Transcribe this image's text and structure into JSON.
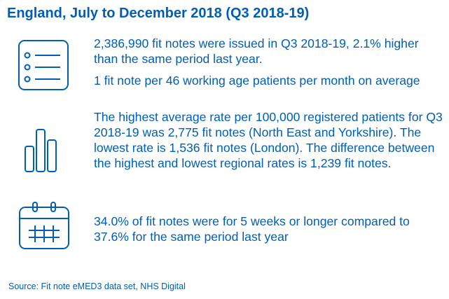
{
  "header": {
    "title": "England, July to December 2018 (Q3 2018-19)"
  },
  "sections": [
    {
      "icon": "list-icon",
      "text": "2,386,990 fit notes were issued in Q3 2018-19, 2.1% higher than the same period last year."
    },
    {
      "icon": "list-icon",
      "text": "1 fit note per 46 working age patients per month on average"
    },
    {
      "icon": "bar-chart-icon",
      "text": "The highest average rate per 100,000 registered patients for Q3 2018-19 was 2,775 fit notes (North East and Yorkshire). The lowest rate is 1,536 fit notes (London). The difference between the highest and lowest regional rates is 1,239 fit notes."
    },
    {
      "icon": "calendar-icon",
      "text": "34.0% of fit notes were for 5 weeks or longer compared to 37.6% for the same period last year"
    }
  ],
  "footer": {
    "source": "Source: Fit note eMED3 data set, NHS Digital"
  },
  "colors": {
    "text": "#005eb8",
    "icon": "#005eb8",
    "background": "#ffffff"
  }
}
